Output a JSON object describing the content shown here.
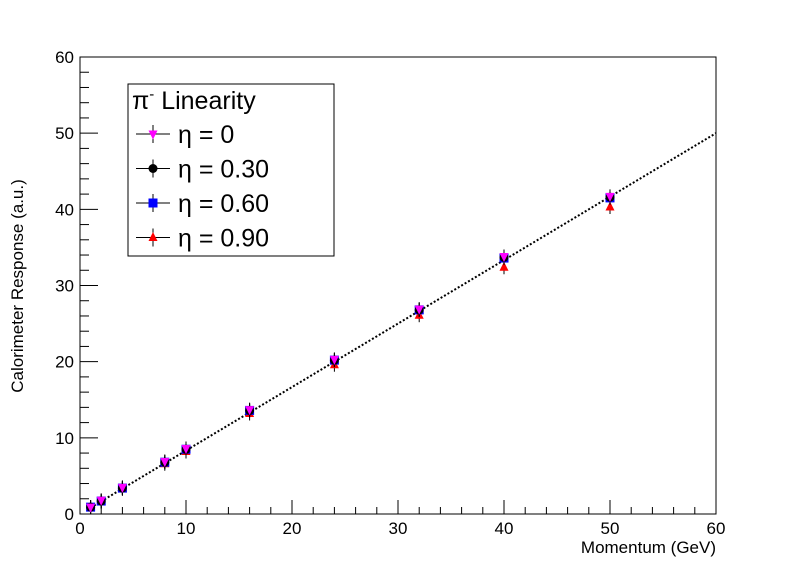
{
  "chart_data": {
    "type": "scatter",
    "xlabel": "Momentum (GeV)",
    "ylabel": "Calorimeter Response (a.u.)",
    "xlim": [
      0,
      60
    ],
    "ylim": [
      0,
      60
    ],
    "xticks": [
      0,
      10,
      20,
      30,
      40,
      50,
      60
    ],
    "yticks": [
      0,
      10,
      20,
      30,
      40,
      50,
      60
    ],
    "grid": false,
    "legend": {
      "title_symbol": "π",
      "title_superscript": "-",
      "title_text": " Linearity",
      "placement": "top-left"
    },
    "series": [
      {
        "name": "η = 0",
        "marker": "triangle-down",
        "color": "#ff00ff",
        "x": [
          1,
          2,
          4,
          8,
          10,
          16,
          24,
          32,
          40,
          50
        ],
        "y": [
          0.9,
          1.8,
          3.5,
          6.9,
          8.6,
          13.7,
          20.3,
          26.9,
          33.8,
          41.7
        ]
      },
      {
        "name": "η = 0.30",
        "marker": "circle",
        "color": "#000000",
        "x": [
          1,
          2,
          4,
          8,
          10,
          16,
          24,
          32,
          40,
          50
        ],
        "y": [
          0.9,
          1.7,
          3.4,
          6.8,
          8.5,
          13.6,
          20.2,
          26.8,
          33.7,
          41.6
        ]
      },
      {
        "name": "η = 0.60",
        "marker": "square",
        "color": "#0000ff",
        "x": [
          1,
          2,
          4,
          8,
          10,
          16,
          24,
          32,
          40,
          50
        ],
        "y": [
          0.9,
          1.7,
          3.4,
          6.8,
          8.5,
          13.6,
          20.2,
          26.8,
          33.6,
          41.5
        ]
      },
      {
        "name": "η = 0.90",
        "marker": "triangle-up",
        "color": "#ff0000",
        "x": [
          1,
          2,
          4,
          8,
          10,
          16,
          24,
          32,
          40,
          50
        ],
        "y": [
          0.85,
          1.6,
          3.3,
          6.6,
          8.2,
          13.2,
          19.6,
          26.1,
          32.4,
          40.3
        ]
      }
    ],
    "fit_line": {
      "style": "dotted",
      "color": "#000000",
      "x": [
        1,
        60
      ],
      "y": [
        0.83,
        50
      ]
    }
  }
}
